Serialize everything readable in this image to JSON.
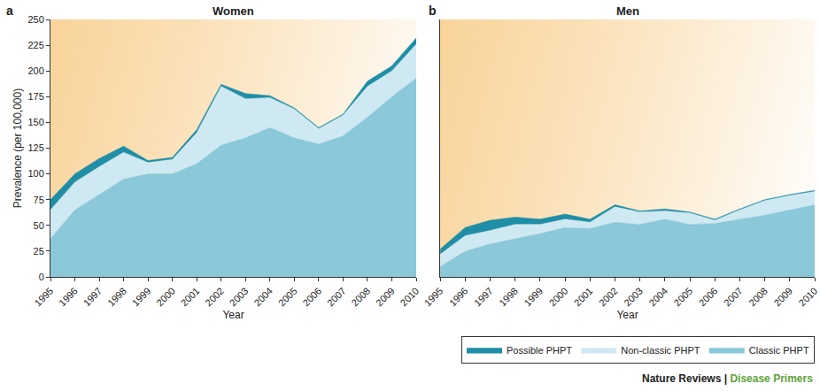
{
  "chart_data": [
    {
      "type": "area",
      "label": "a",
      "title": "Women",
      "x_label": "Year",
      "y_label": "Prevalence (per 100,000)",
      "stacked": true,
      "grid": false,
      "x": [
        1995,
        1996,
        1997,
        1998,
        1999,
        2000,
        2001,
        2002,
        2003,
        2004,
        2005,
        2006,
        2007,
        2008,
        2009,
        2010
      ],
      "xlim": [
        1995,
        2010
      ],
      "xticks": [
        1995,
        1996,
        1997,
        1998,
        1999,
        2000,
        2001,
        2002,
        2003,
        2004,
        2005,
        2006,
        2007,
        2008,
        2009,
        2010
      ],
      "ylim": [
        0,
        250
      ],
      "yticks": [
        0,
        25,
        50,
        75,
        100,
        125,
        150,
        175,
        200,
        225,
        250
      ],
      "series": [
        {
          "name": "Classic PHPT",
          "color": "#8ac8da",
          "values": [
            37,
            65,
            80,
            95,
            100,
            100,
            110,
            128,
            135,
            145,
            135,
            129,
            137,
            155,
            175,
            193
          ]
        },
        {
          "name": "Non-classic PHPT",
          "color": "#cfe9f2",
          "values": [
            28,
            27,
            27,
            26,
            11,
            14,
            30,
            57,
            38,
            29,
            28,
            15,
            20,
            30,
            25,
            33
          ]
        },
        {
          "name": "Possible PHPT",
          "color": "#1f8ea6",
          "values": [
            10,
            8,
            8,
            6,
            2,
            2,
            3,
            2,
            5,
            2,
            1,
            1,
            1,
            5,
            5,
            6
          ]
        }
      ]
    },
    {
      "type": "area",
      "label": "b",
      "title": "Men",
      "x_label": "Year",
      "stacked": true,
      "grid": false,
      "tick_labels": "x",
      "legend": "bottom right",
      "x": [
        1995,
        1996,
        1997,
        1998,
        1999,
        2000,
        2001,
        2002,
        2003,
        2004,
        2005,
        2006,
        2007,
        2008,
        2009,
        2010
      ],
      "xlim": [
        1995,
        2010
      ],
      "xticks": [
        1995,
        1996,
        1997,
        1998,
        1999,
        2000,
        2001,
        2002,
        2003,
        2004,
        2005,
        2006,
        2007,
        2008,
        2009,
        2010
      ],
      "ylim": [
        0,
        250
      ],
      "series": [
        {
          "name": "Classic PHPT",
          "color": "#8ac8da",
          "values": [
            10,
            25,
            32,
            37,
            42,
            48,
            47,
            53,
            51,
            56,
            51,
            52,
            56,
            60,
            65,
            70
          ]
        },
        {
          "name": "Non-classic PHPT",
          "color": "#cfe9f2",
          "values": [
            12,
            15,
            13,
            14,
            9,
            8,
            6,
            15,
            12,
            8,
            11,
            3,
            9,
            14,
            14,
            13
          ]
        },
        {
          "name": "Possible PHPT",
          "color": "#1f8ea6",
          "values": [
            5,
            8,
            10,
            7,
            5,
            5,
            3,
            2,
            1,
            2,
            1,
            1,
            1,
            1,
            1,
            1
          ]
        }
      ]
    }
  ],
  "footer": [
    {
      "text": "Nature Reviews |",
      "color": "#222222"
    },
    {
      "text": "Disease Primers",
      "color": "#5ea23a"
    }
  ]
}
